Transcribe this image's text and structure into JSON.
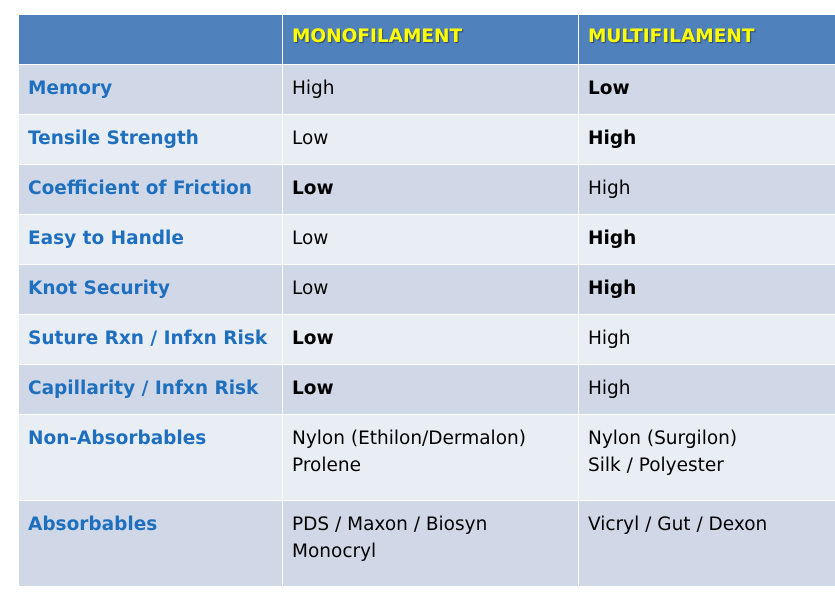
{
  "table": {
    "headers": [
      "",
      "MONOFILAMENT",
      "MULTIFILAMENT"
    ],
    "rows": [
      {
        "label": "Memory",
        "mono": [
          "High"
        ],
        "multi": [
          "Low"
        ],
        "bold": "multi"
      },
      {
        "label": "Tensile Strength",
        "mono": [
          "Low"
        ],
        "multi": [
          "High"
        ],
        "bold": "multi"
      },
      {
        "label": "Coefficient of Friction",
        "mono": [
          "Low"
        ],
        "multi": [
          "High"
        ],
        "bold": "mono"
      },
      {
        "label": "Easy to Handle",
        "mono": [
          "Low"
        ],
        "multi": [
          "High"
        ],
        "bold": "multi"
      },
      {
        "label": "Knot Security",
        "mono": [
          "Low"
        ],
        "multi": [
          "High"
        ],
        "bold": "multi"
      },
      {
        "label": "Suture Rxn / Infxn Risk",
        "mono": [
          "Low"
        ],
        "multi": [
          "High"
        ],
        "bold": "mono"
      },
      {
        "label": "Capillarity / Infxn Risk",
        "mono": [
          "Low"
        ],
        "multi": [
          "High"
        ],
        "bold": "mono"
      },
      {
        "label": "Non-Absorbables",
        "mono": [
          "Nylon (Ethilon/Dermalon)",
          "Prolene"
        ],
        "multi": [
          "Nylon (Surgilon)",
          "Silk / Polyester"
        ],
        "bold": "none"
      },
      {
        "label": "Absorbables",
        "mono": [
          "PDS / Maxon / Biosyn",
          "Monocryl"
        ],
        "multi": [
          "Vicryl / Gut / Dexon"
        ],
        "bold": "none"
      }
    ],
    "colors": {
      "header_bg": "#4f81bd",
      "header_text": "#ffff00",
      "row_odd": "#d0d8e8",
      "row_even": "#e9edf4",
      "label_text": "#1f6fbf"
    }
  }
}
